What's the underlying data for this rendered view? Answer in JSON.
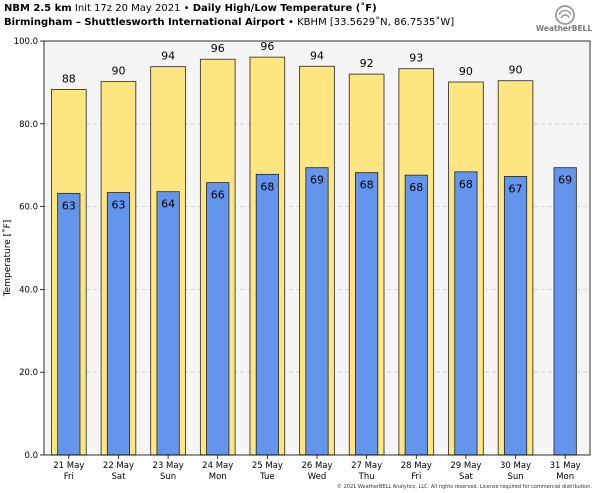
{
  "header": {
    "line1_bold_a": "NBM 2.5 km",
    "line1_init": "Init 17z 20 May 2021",
    "line1_sep": "•",
    "line1_bold_b": "Daily High/Low Temperature (˚F)",
    "line2_bold": "Birmingham – Shuttlesworth International Airport",
    "line2_sep": "•",
    "line2_station": "KBHM [33.5629˚N, 86.7535˚W]"
  },
  "logo": {
    "text": "WeatherBELL",
    "icon": "weatherbell-swirl-icon"
  },
  "footer": {
    "text": "© 2021 WeatherBELL Analytics, LLC. All rights reserved. License required for commercial distribution."
  },
  "colors": {
    "high_bar": "#ffe680",
    "low_bar": "#6495ed",
    "plot_bg": "#f5f5f5",
    "grid": "#cccccc"
  },
  "chart_data": {
    "type": "bar",
    "ylabel": "Temperature [˚F]",
    "ylim": [
      0,
      100
    ],
    "yticks": [
      "0.0",
      "20.0",
      "40.0",
      "60.0",
      "80.0",
      "100.0"
    ],
    "grid": true,
    "categories": [
      {
        "date": "21 May",
        "day": "Fri"
      },
      {
        "date": "22 May",
        "day": "Sat"
      },
      {
        "date": "23 May",
        "day": "Sun"
      },
      {
        "date": "24 May",
        "day": "Mon"
      },
      {
        "date": "25 May",
        "day": "Tue"
      },
      {
        "date": "26 May",
        "day": "Wed"
      },
      {
        "date": "27 May",
        "day": "Thu"
      },
      {
        "date": "28 May",
        "day": "Fri"
      },
      {
        "date": "29 May",
        "day": "Sat"
      },
      {
        "date": "30 May",
        "day": "Sun"
      },
      {
        "date": "31 May",
        "day": "Mon"
      }
    ],
    "series": [
      {
        "values": [
          88.3,
          90.2,
          93.8,
          95.6,
          96.1,
          93.9,
          92.0,
          93.3,
          90.1,
          90.4,
          null
        ],
        "labels": [
          "88",
          "90",
          "94",
          "96",
          "96",
          "94",
          "92",
          "93",
          "90",
          "90",
          ""
        ]
      },
      {
        "values": [
          63.2,
          63.4,
          63.6,
          65.8,
          67.8,
          69.4,
          68.2,
          67.6,
          68.4,
          67.3,
          69.4
        ],
        "labels": [
          "63",
          "63",
          "64",
          "66",
          "68",
          "69",
          "68",
          "68",
          "68",
          "67",
          "69"
        ]
      }
    ]
  }
}
